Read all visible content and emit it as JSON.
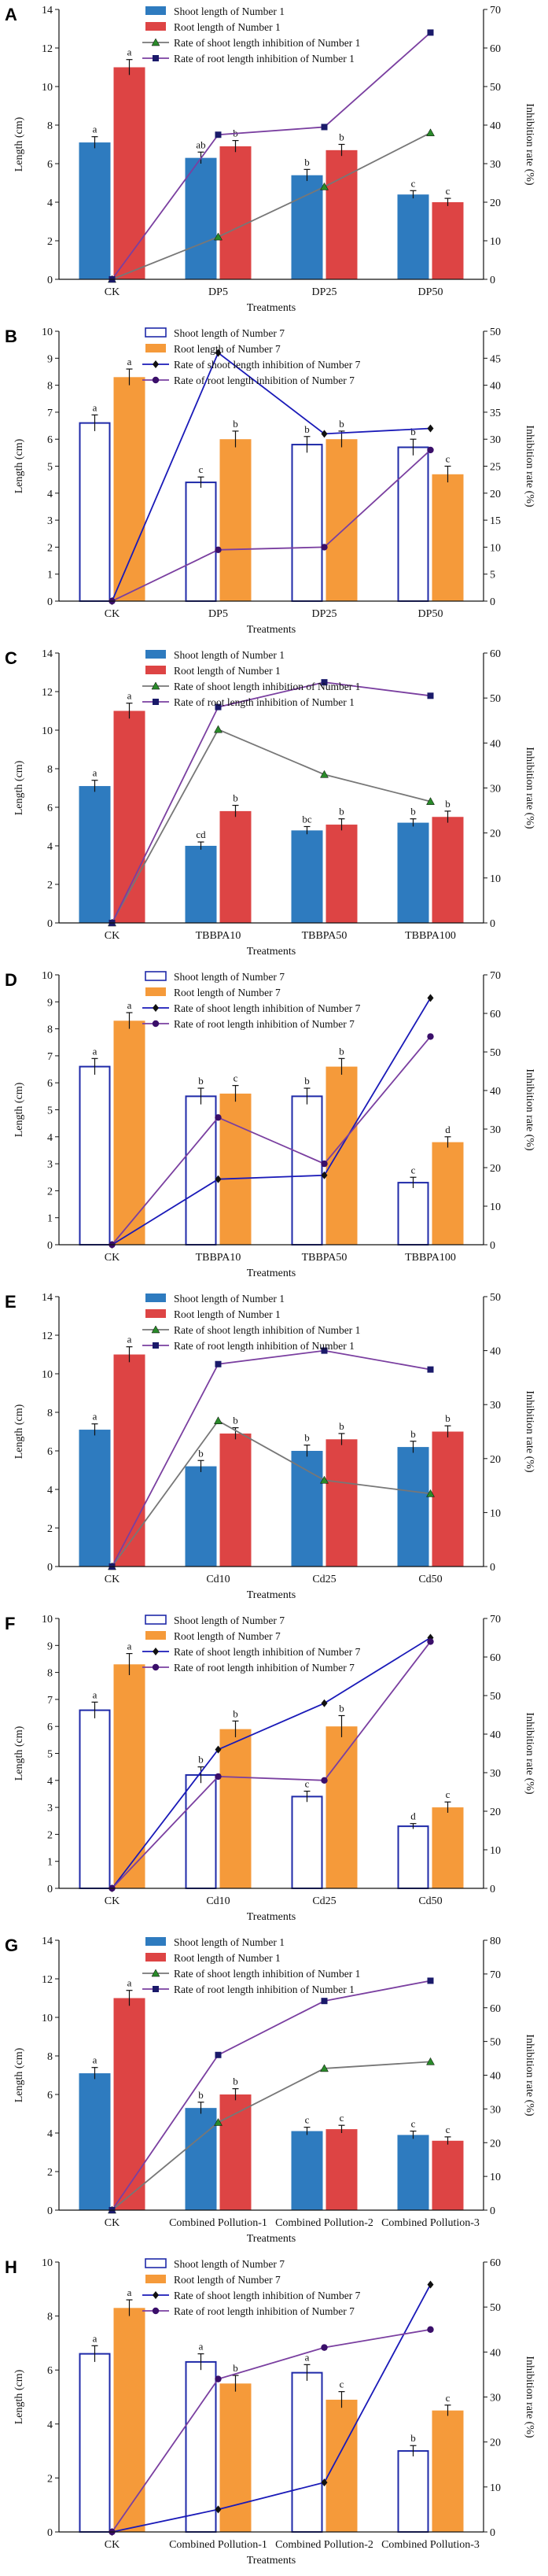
{
  "chart_data": [
    {
      "panel": "A",
      "type": "bar",
      "style": "solid",
      "categories": [
        "CK",
        "DP5",
        "DP25",
        "DP50"
      ],
      "xlabel": "Treatments",
      "ylabel": "Length (cm)",
      "ylabel2": "Inhibition rate (%)",
      "ylim": [
        0,
        14
      ],
      "ytick_step": 2,
      "y2lim": [
        0,
        70
      ],
      "y2tick_step": 10,
      "series": [
        {
          "name": "Shoot length of Number 1",
          "kind": "bar",
          "values": [
            7.1,
            6.3,
            5.4,
            4.4
          ],
          "errors": [
            0.3,
            0.3,
            0.3,
            0.2
          ],
          "labels": [
            "a",
            "ab",
            "b",
            "c"
          ]
        },
        {
          "name": "Root length of Number 1",
          "kind": "bar",
          "values": [
            11.0,
            6.9,
            6.7,
            4.0
          ],
          "errors": [
            0.4,
            0.3,
            0.3,
            0.2
          ],
          "labels": [
            "a",
            "b",
            "b",
            "c"
          ]
        },
        {
          "name": "Rate of shoot length inhibition of Number 1",
          "kind": "line",
          "marker": "triangle",
          "values": [
            0,
            11,
            24,
            38
          ]
        },
        {
          "name": "Rate of root length inhibition of Number 1",
          "kind": "line",
          "marker": "square",
          "values": [
            0,
            37.5,
            39.5,
            64
          ]
        }
      ]
    },
    {
      "panel": "B",
      "type": "bar",
      "style": "hollow",
      "categories": [
        "CK",
        "DP5",
        "DP25",
        "DP50"
      ],
      "xlabel": "Treatments",
      "ylabel": "Length (cm)",
      "ylabel2": "Inhibition rate (%)",
      "ylim": [
        0,
        10
      ],
      "ytick_step": 1,
      "y2lim": [
        0,
        50
      ],
      "y2tick_step": 5,
      "series": [
        {
          "name": "Shoot length of Number 7",
          "kind": "bar",
          "values": [
            6.6,
            4.4,
            5.8,
            5.7
          ],
          "errors": [
            0.3,
            0.2,
            0.3,
            0.3
          ],
          "labels": [
            "a",
            "c",
            "b",
            "b"
          ]
        },
        {
          "name": "Root length of Number 7",
          "kind": "bar",
          "values": [
            8.3,
            6.0,
            6.0,
            4.7
          ],
          "errors": [
            0.3,
            0.3,
            0.3,
            0.3
          ],
          "labels": [
            "a",
            "b",
            "b",
            "c"
          ]
        },
        {
          "name": "Rate of shoot length inhibition of Number 7",
          "kind": "line",
          "marker": "diamond",
          "values": [
            0,
            46,
            31,
            32
          ]
        },
        {
          "name": "Rate of root length inhibition of Number 7",
          "kind": "line",
          "marker": "circle",
          "values": [
            0,
            9.5,
            10,
            28
          ]
        }
      ]
    },
    {
      "panel": "C",
      "type": "bar",
      "style": "solid",
      "categories": [
        "CK",
        "TBBPA10",
        "TBBPA50",
        "TBBPA100"
      ],
      "xlabel": "Treatments",
      "ylabel": "Length (cm)",
      "ylabel2": "Inhibition rate (%)",
      "ylim": [
        0,
        14
      ],
      "ytick_step": 2,
      "y2lim": [
        0,
        60
      ],
      "y2tick_step": 10,
      "series": [
        {
          "name": "Shoot length of Number 1",
          "kind": "bar",
          "values": [
            7.1,
            4.0,
            4.8,
            5.2
          ],
          "errors": [
            0.3,
            0.2,
            0.2,
            0.2
          ],
          "labels": [
            "a",
            "cd",
            "bc",
            "b"
          ]
        },
        {
          "name": "Root length of Number 1",
          "kind": "bar",
          "values": [
            11.0,
            5.8,
            5.1,
            5.5
          ],
          "errors": [
            0.4,
            0.3,
            0.3,
            0.3
          ],
          "labels": [
            "a",
            "b",
            "b",
            "b"
          ]
        },
        {
          "name": "Rate of shoot length inhibition of Number 1",
          "kind": "line",
          "marker": "triangle",
          "values": [
            0,
            43,
            33,
            27
          ]
        },
        {
          "name": "Rate of root length inhibition of Number 1",
          "kind": "line",
          "marker": "square",
          "values": [
            0,
            48,
            53.5,
            50.5
          ]
        }
      ]
    },
    {
      "panel": "D",
      "type": "bar",
      "style": "hollow",
      "categories": [
        "CK",
        "TBBPA10",
        "TBBPA50",
        "TBBPA100"
      ],
      "xlabel": "Treatments",
      "ylabel": "Length (cm)",
      "ylabel2": "Inhibition rate (%)",
      "ylim": [
        0,
        10
      ],
      "ytick_step": 1,
      "y2lim": [
        0,
        70
      ],
      "y2tick_step": 10,
      "series": [
        {
          "name": "Shoot length of Number 7",
          "kind": "bar",
          "values": [
            6.6,
            5.5,
            5.5,
            2.3
          ],
          "errors": [
            0.3,
            0.3,
            0.3,
            0.2
          ],
          "labels": [
            "a",
            "b",
            "b",
            "c"
          ]
        },
        {
          "name": "Root length of Number 7",
          "kind": "bar",
          "values": [
            8.3,
            5.6,
            6.6,
            3.8
          ],
          "errors": [
            0.3,
            0.3,
            0.3,
            0.2
          ],
          "labels": [
            "a",
            "c",
            "b",
            "d"
          ]
        },
        {
          "name": "Rate of shoot length inhibition of Number 7",
          "kind": "line",
          "marker": "diamond",
          "values": [
            0,
            17,
            18,
            64
          ]
        },
        {
          "name": "Rate of root length inhibition of Number 7",
          "kind": "line",
          "marker": "circle",
          "values": [
            0,
            33,
            21,
            54
          ]
        }
      ]
    },
    {
      "panel": "E",
      "type": "bar",
      "style": "solid",
      "categories": [
        "CK",
        "Cd10",
        "Cd25",
        "Cd50"
      ],
      "xlabel": "Treatments",
      "ylabel": "Length (cm)",
      "ylabel2": "Inhibition rate (%)",
      "ylim": [
        0,
        14
      ],
      "ytick_step": 2,
      "y2lim": [
        0,
        50
      ],
      "y2tick_step": 10,
      "series": [
        {
          "name": "Shoot length of Number 1",
          "kind": "bar",
          "values": [
            7.1,
            5.2,
            6.0,
            6.2
          ],
          "errors": [
            0.3,
            0.3,
            0.3,
            0.3
          ],
          "labels": [
            "a",
            "b",
            "b",
            "b"
          ]
        },
        {
          "name": "Root length of Number 1",
          "kind": "bar",
          "values": [
            11.0,
            6.9,
            6.6,
            7.0
          ],
          "errors": [
            0.4,
            0.3,
            0.3,
            0.3
          ],
          "labels": [
            "a",
            "b",
            "b",
            "b"
          ]
        },
        {
          "name": "Rate of shoot length inhibition of Number 1",
          "kind": "line",
          "marker": "triangle",
          "values": [
            0,
            27,
            16,
            13.5
          ]
        },
        {
          "name": "Rate of root length inhibition of Number 1",
          "kind": "line",
          "marker": "square",
          "values": [
            0,
            37.5,
            40,
            36.5
          ]
        }
      ]
    },
    {
      "panel": "F",
      "type": "bar",
      "style": "hollow",
      "categories": [
        "CK",
        "Cd10",
        "Cd25",
        "Cd50"
      ],
      "xlabel": "Treatments",
      "ylabel": "Length (cm)",
      "ylabel2": "Inhibition rate (%)",
      "ylim": [
        0,
        10
      ],
      "ytick_step": 1,
      "y2lim": [
        0,
        70
      ],
      "y2tick_step": 10,
      "series": [
        {
          "name": "Shoot length of Number 7",
          "kind": "bar",
          "values": [
            6.6,
            4.2,
            3.4,
            2.3
          ],
          "errors": [
            0.3,
            0.3,
            0.2,
            0.1
          ],
          "labels": [
            "a",
            "b",
            "c",
            "d"
          ]
        },
        {
          "name": "Root length of Number 7",
          "kind": "bar",
          "values": [
            8.3,
            5.9,
            6.0,
            3.0
          ],
          "errors": [
            0.4,
            0.3,
            0.4,
            0.2
          ],
          "labels": [
            "a",
            "b",
            "b",
            "c"
          ]
        },
        {
          "name": "Rate of shoot length inhibition of Number 7",
          "kind": "line",
          "marker": "diamond",
          "values": [
            0,
            36,
            48,
            65
          ]
        },
        {
          "name": "Rate of root length inhibition of Number 7",
          "kind": "line",
          "marker": "circle",
          "values": [
            0,
            29,
            28,
            64
          ]
        }
      ]
    },
    {
      "panel": "G",
      "type": "bar",
      "style": "solid",
      "categories": [
        "CK",
        "Combined Pollution-1",
        "Combined Pollution-2",
        "Combined Pollution-3"
      ],
      "xlabel": "Treatments",
      "ylabel": "Length (cm)",
      "ylabel2": "Inhibition rate (%)",
      "ylim": [
        0,
        14
      ],
      "ytick_step": 2,
      "y2lim": [
        0,
        80
      ],
      "y2tick_step": 10,
      "series": [
        {
          "name": "Shoot length of Number 1",
          "kind": "bar",
          "values": [
            7.1,
            5.3,
            4.1,
            3.9
          ],
          "errors": [
            0.3,
            0.3,
            0.2,
            0.2
          ],
          "labels": [
            "a",
            "b",
            "c",
            "c"
          ]
        },
        {
          "name": "Root length of Number 1",
          "kind": "bar",
          "values": [
            11.0,
            6.0,
            4.2,
            3.6
          ],
          "errors": [
            0.4,
            0.3,
            0.2,
            0.2
          ],
          "labels": [
            "a",
            "b",
            "c",
            "c"
          ]
        },
        {
          "name": "Rate of shoot length inhibition of Number 1",
          "kind": "line",
          "marker": "triangle",
          "values": [
            0,
            26,
            42,
            44
          ]
        },
        {
          "name": "Rate of root length inhibition of Number 1",
          "kind": "line",
          "marker": "square",
          "values": [
            0,
            46,
            62,
            68
          ]
        }
      ]
    },
    {
      "panel": "H",
      "type": "bar",
      "style": "hollow",
      "categories": [
        "CK",
        "Combined Pollution-1",
        "Combined Pollution-2",
        "Combined Pollution-3"
      ],
      "xlabel": "Treatments",
      "ylabel": "Length (cm)",
      "ylabel2": "Inhibition rate (%)",
      "ylim": [
        0,
        10
      ],
      "ytick_step": 2,
      "y2lim": [
        0,
        60
      ],
      "y2tick_step": 10,
      "series": [
        {
          "name": "Shoot length of Number 7",
          "kind": "bar",
          "values": [
            6.6,
            6.3,
            5.9,
            3.0
          ],
          "errors": [
            0.3,
            0.3,
            0.3,
            0.2
          ],
          "labels": [
            "a",
            "a",
            "a",
            "b"
          ]
        },
        {
          "name": "Root length of Number 7",
          "kind": "bar",
          "values": [
            8.3,
            5.5,
            4.9,
            4.5
          ],
          "errors": [
            0.3,
            0.3,
            0.3,
            0.2
          ],
          "labels": [
            "a",
            "b",
            "c",
            "c"
          ]
        },
        {
          "name": "Rate of shoot length inhibition of Number 7",
          "kind": "line",
          "marker": "diamond",
          "values": [
            0,
            5,
            11,
            55
          ]
        },
        {
          "name": "Rate of root length inhibition of Number 7",
          "kind": "line",
          "marker": "circle",
          "values": [
            0,
            34,
            41,
            45
          ]
        }
      ]
    }
  ]
}
